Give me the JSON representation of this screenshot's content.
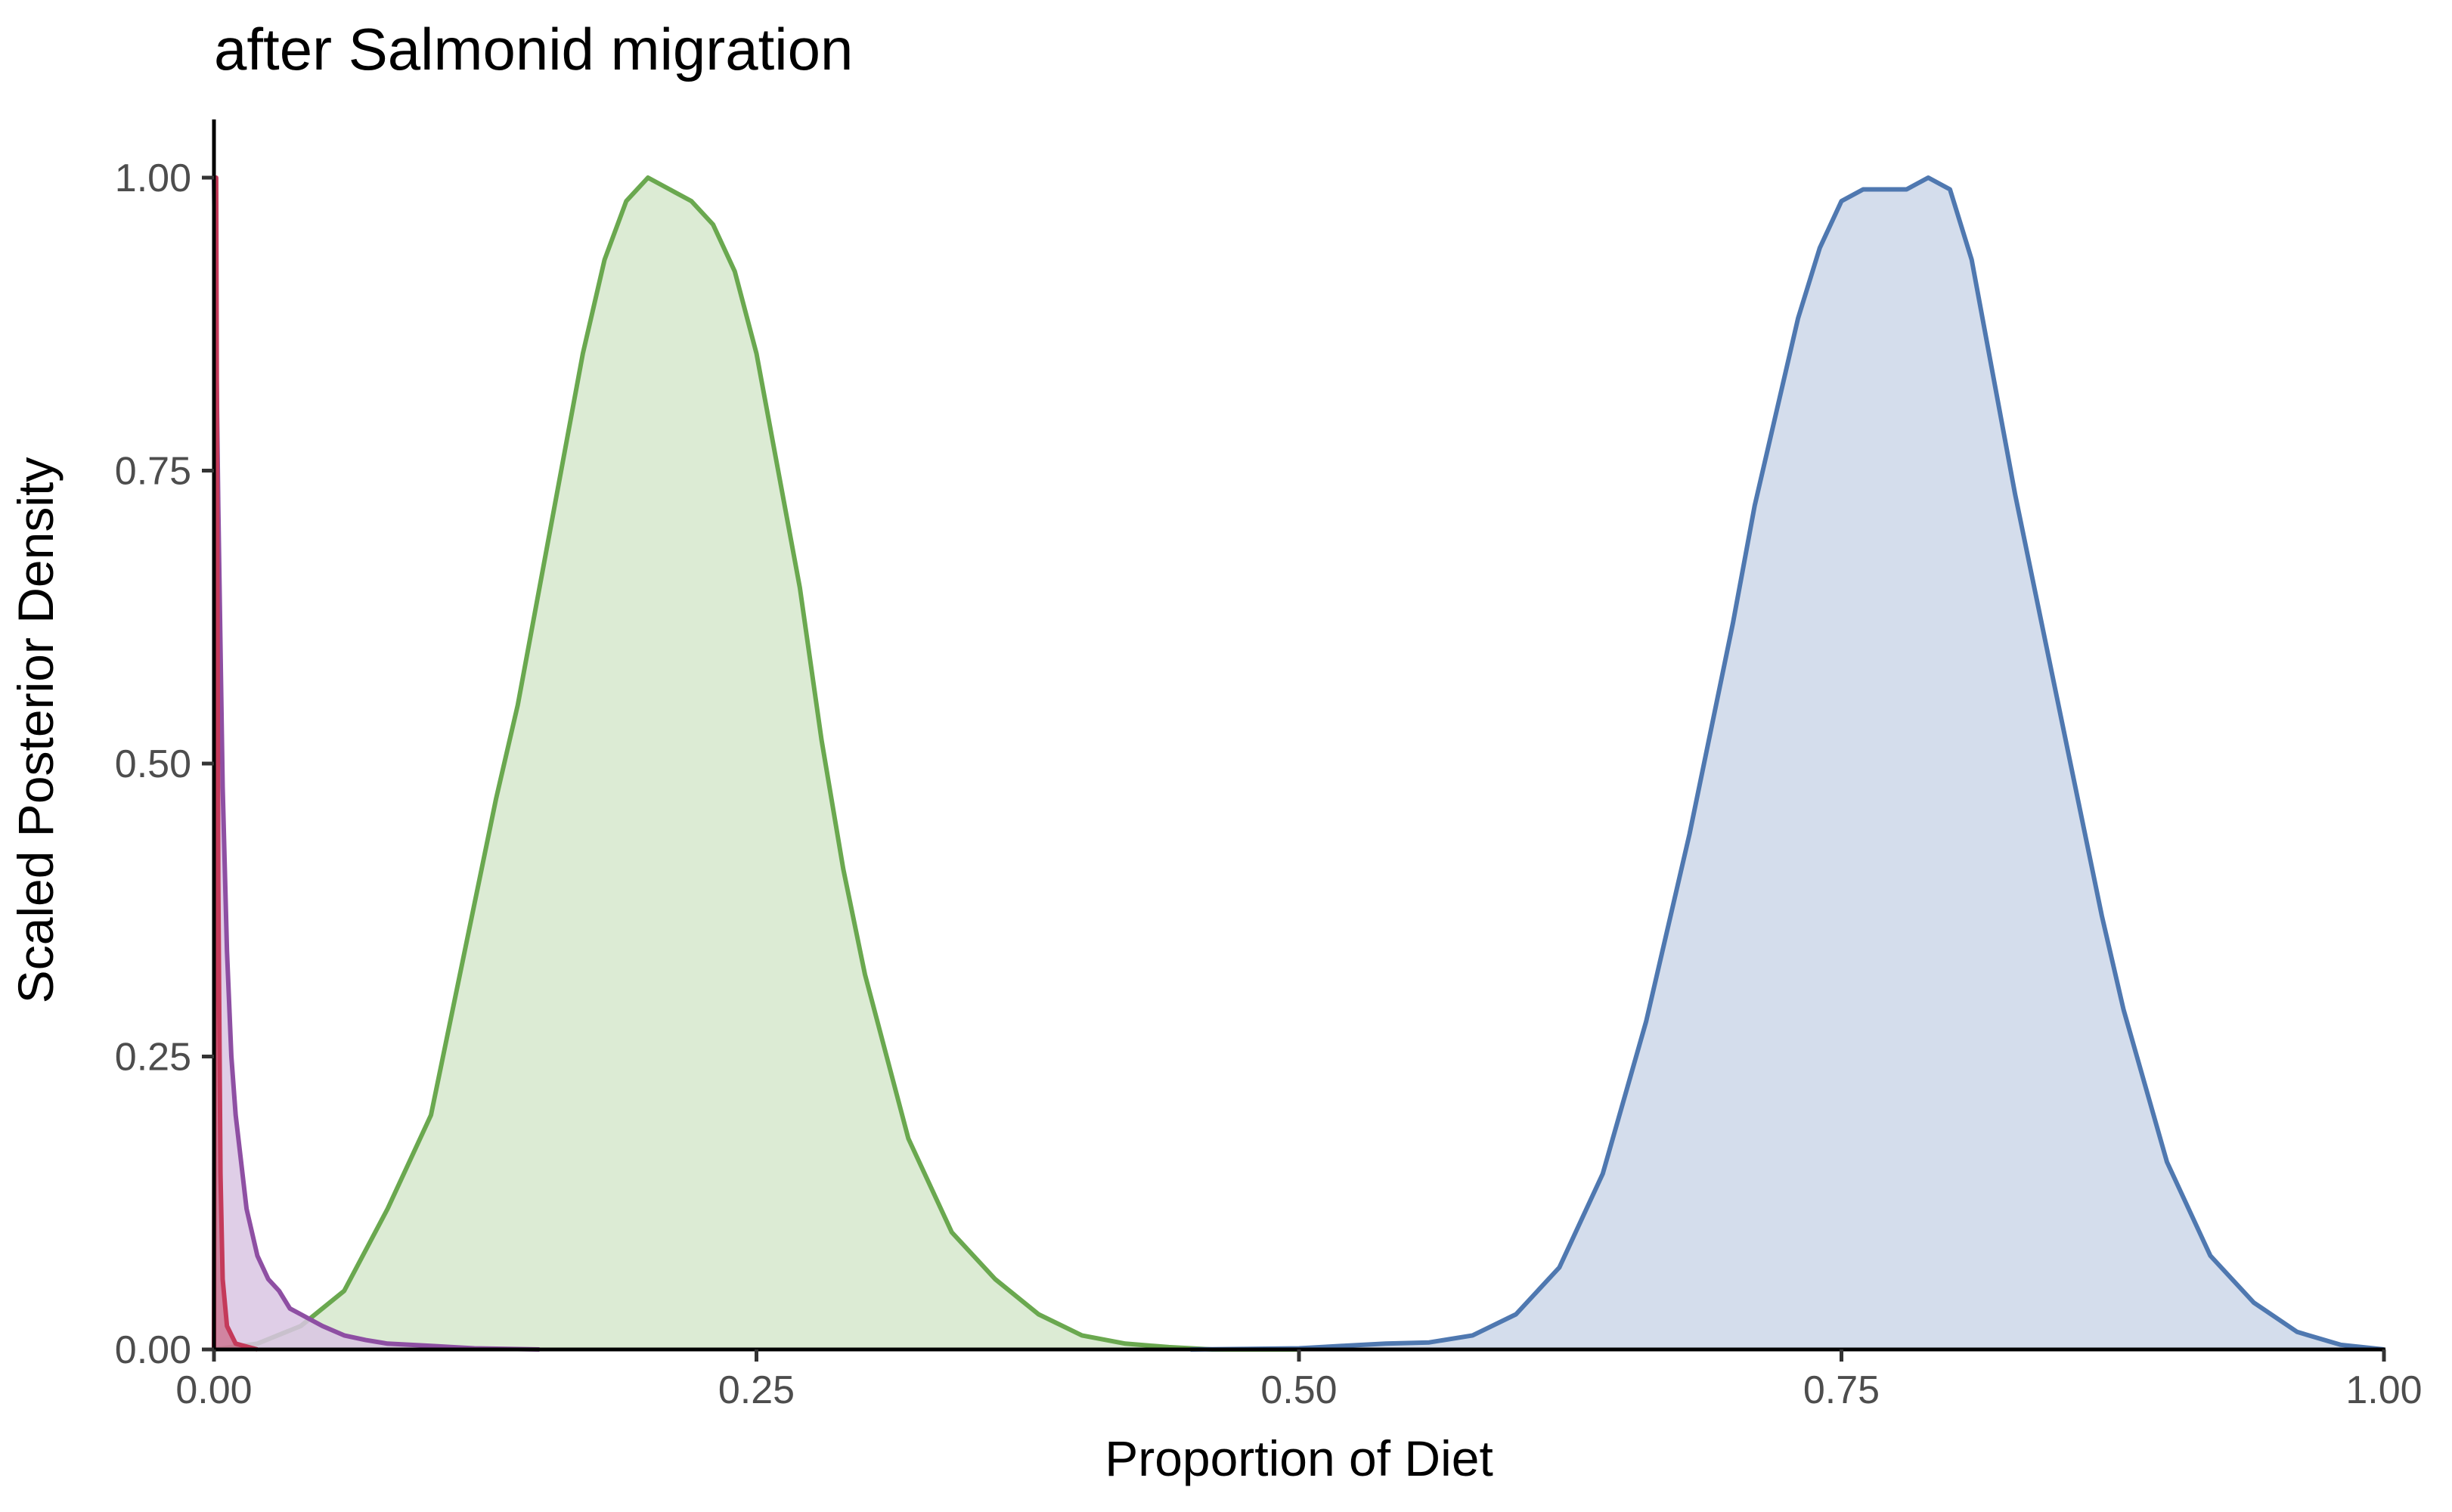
{
  "chart_data": {
    "type": "area",
    "title": "after Salmonid migration",
    "xlabel": "Proportion of Diet",
    "ylabel": "Scaled Posterior Density",
    "xlim": [
      0,
      1
    ],
    "ylim": [
      0,
      1.05
    ],
    "x_ticks": [
      "0.00",
      "0.25",
      "0.50",
      "0.75",
      "1.00"
    ],
    "y_ticks": [
      "0.00",
      "0.25",
      "0.50",
      "0.75",
      "1.00"
    ],
    "grid": false,
    "legend": "none",
    "series": [
      {
        "color": "#c43a5a",
        "fill": "#c43a5a",
        "x": [
          0.0,
          0.001,
          0.002,
          0.003,
          0.004,
          0.006,
          0.01,
          0.02
        ],
        "y": [
          0.0,
          1.0,
          0.4,
          0.15,
          0.06,
          0.02,
          0.005,
          0.0
        ]
      },
      {
        "color": "#8e4fa3",
        "fill": "#d9c6e3",
        "x": [
          0.0,
          0.002,
          0.004,
          0.006,
          0.008,
          0.01,
          0.015,
          0.02,
          0.025,
          0.03,
          0.035,
          0.04,
          0.045,
          0.05,
          0.06,
          0.07,
          0.08,
          0.1,
          0.12,
          0.15
        ],
        "y": [
          1.0,
          0.72,
          0.48,
          0.34,
          0.25,
          0.2,
          0.12,
          0.08,
          0.06,
          0.05,
          0.035,
          0.03,
          0.025,
          0.02,
          0.012,
          0.008,
          0.005,
          0.003,
          0.001,
          0.0
        ]
      },
      {
        "color": "#6aa84f",
        "fill": "#d6e8cd",
        "x": [
          0.0,
          0.02,
          0.04,
          0.06,
          0.08,
          0.1,
          0.12,
          0.13,
          0.14,
          0.15,
          0.16,
          0.17,
          0.18,
          0.19,
          0.2,
          0.21,
          0.22,
          0.23,
          0.24,
          0.25,
          0.26,
          0.27,
          0.28,
          0.29,
          0.3,
          0.31,
          0.32,
          0.34,
          0.36,
          0.38,
          0.4,
          0.42,
          0.44,
          0.46,
          0.5
        ],
        "y": [
          0.0,
          0.005,
          0.02,
          0.05,
          0.12,
          0.2,
          0.38,
          0.47,
          0.55,
          0.65,
          0.75,
          0.85,
          0.93,
          0.98,
          1.0,
          0.99,
          0.98,
          0.96,
          0.92,
          0.85,
          0.75,
          0.65,
          0.52,
          0.41,
          0.32,
          0.25,
          0.18,
          0.1,
          0.06,
          0.03,
          0.012,
          0.005,
          0.002,
          0.0,
          0.0
        ]
      },
      {
        "color": "#4f78b0",
        "fill": "#ccd7e9",
        "x": [
          0.45,
          0.5,
          0.52,
          0.54,
          0.56,
          0.58,
          0.6,
          0.62,
          0.64,
          0.66,
          0.68,
          0.7,
          0.71,
          0.72,
          0.73,
          0.74,
          0.75,
          0.76,
          0.77,
          0.78,
          0.79,
          0.8,
          0.81,
          0.82,
          0.83,
          0.84,
          0.85,
          0.86,
          0.87,
          0.88,
          0.9,
          0.92,
          0.94,
          0.96,
          0.98,
          1.0
        ],
        "y": [
          0.0,
          0.001,
          0.003,
          0.005,
          0.006,
          0.012,
          0.03,
          0.07,
          0.15,
          0.28,
          0.44,
          0.62,
          0.72,
          0.8,
          0.88,
          0.94,
          0.98,
          0.99,
          0.99,
          0.99,
          1.0,
          0.99,
          0.93,
          0.83,
          0.73,
          0.64,
          0.55,
          0.46,
          0.37,
          0.29,
          0.16,
          0.08,
          0.04,
          0.015,
          0.004,
          0.0
        ]
      }
    ]
  }
}
